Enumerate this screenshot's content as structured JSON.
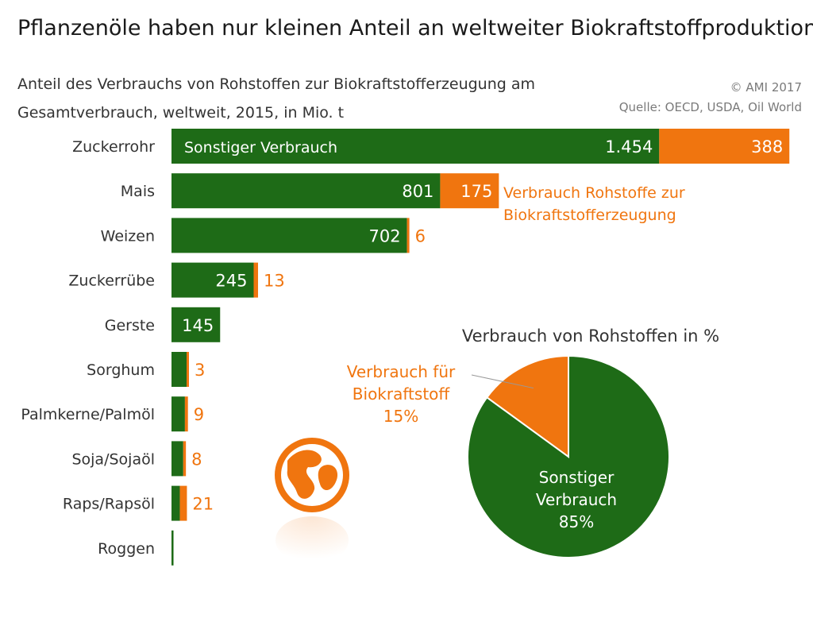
{
  "title": "Pflanzenöle haben nur kleinen Anteil an weltweiter Biokraftstoffproduktion",
  "subtitle_line1": "Anteil des Verbrauchs von Rohstoffen zur Biokraftstofferzeugung am",
  "subtitle_line2": "Gesamtverbrauch, weltweit, 2015, in Mio. t",
  "copyright": "© AMI 2017",
  "source": "Quelle: OECD, USDA, Oil World",
  "colors": {
    "other": "#1e6b17",
    "biofuel": "#f0750f",
    "pie_border": "#ffffff"
  },
  "chart_data": [
    {
      "type": "bar",
      "orientation": "horizontal",
      "stacked": true,
      "categories": [
        "Zuckerrohr",
        "Mais",
        "Weizen",
        "Zuckerrübe",
        "Gerste",
        "Sorghum",
        "Palmkerne/Palmöl",
        "Soja/Sojaöl",
        "Raps/Rapsöl",
        "Roggen"
      ],
      "series": [
        {
          "name": "Sonstiger Verbrauch",
          "values": [
            1454,
            801,
            702,
            245,
            145,
            45,
            40,
            35,
            25,
            6
          ],
          "labels": [
            "1.454",
            "801",
            "702",
            "245",
            "145",
            "",
            "",
            "",
            "",
            ""
          ]
        },
        {
          "name": "Verbrauch Rohstoffe zur Biokraftstofferzeugung",
          "values": [
            388,
            175,
            6,
            13,
            0,
            3,
            9,
            8,
            21,
            0
          ],
          "labels": [
            "388",
            "175",
            "6",
            "13",
            "",
            "3",
            "9",
            "8",
            "21",
            ""
          ]
        }
      ],
      "legend_line1": "Verbrauch Rohstoffe zur",
      "legend_line2": "Biokraftstofferzeugung"
    },
    {
      "type": "pie",
      "title": "Verbrauch von Rohstoffen in %",
      "slices": [
        {
          "label_line1": "Verbrauch für",
          "label_line2": "Biokraftstoff",
          "percent_label": "15%",
          "value": 15
        },
        {
          "label_line1": "Sonstiger",
          "label_line2": "Verbrauch",
          "percent_label": "85%",
          "value": 85
        }
      ]
    }
  ]
}
